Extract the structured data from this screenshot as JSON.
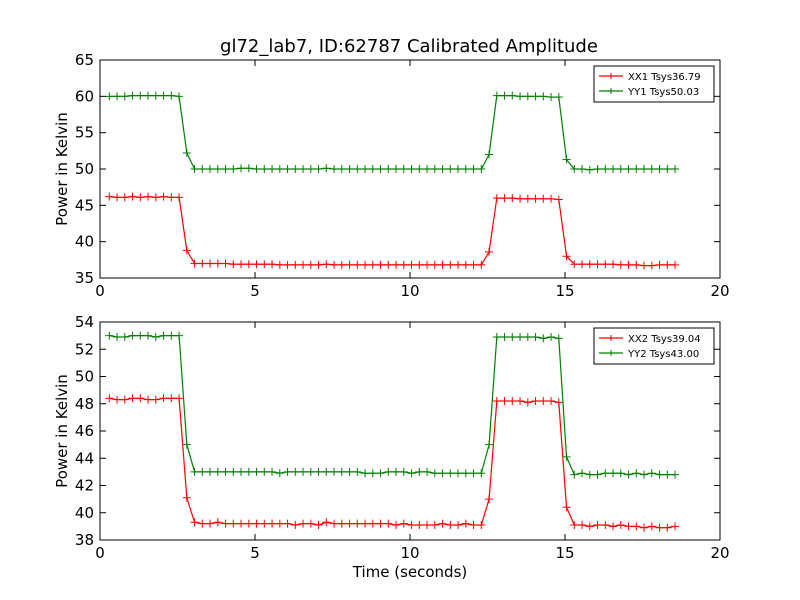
{
  "chart_data": [
    {
      "type": "line",
      "title": "gl72_lab7, ID:62787 Calibrated Amplitude",
      "xlabel": "",
      "ylabel": "Power in Kelvin",
      "xlim": [
        0,
        20
      ],
      "ylim": [
        35,
        65
      ],
      "xticks": [
        0,
        5,
        10,
        15,
        20
      ],
      "yticks": [
        35,
        40,
        45,
        50,
        55,
        60,
        65
      ],
      "legend_position": "top-right",
      "x": [
        0.3,
        0.55,
        0.8,
        1.05,
        1.3,
        1.55,
        1.8,
        2.05,
        2.3,
        2.55,
        2.8,
        3.05,
        3.3,
        3.55,
        3.8,
        4.05,
        4.3,
        4.55,
        4.8,
        5.05,
        5.3,
        5.55,
        5.8,
        6.05,
        6.3,
        6.55,
        6.8,
        7.05,
        7.3,
        7.55,
        7.8,
        8.05,
        8.3,
        8.55,
        8.8,
        9.05,
        9.3,
        9.55,
        9.8,
        10.05,
        10.3,
        10.55,
        10.8,
        11.05,
        11.3,
        11.55,
        11.8,
        12.05,
        12.3,
        12.55,
        12.8,
        13.05,
        13.3,
        13.55,
        13.8,
        14.05,
        14.3,
        14.55,
        14.8,
        15.05,
        15.3,
        15.55,
        15.8,
        16.05,
        16.3,
        16.55,
        16.8,
        17.05,
        17.3,
        17.55,
        17.8,
        18.05,
        18.3,
        18.55
      ],
      "series": [
        {
          "name": "XX1 Tsys36.79",
          "color": "#ff0000",
          "values": [
            46.2,
            46.1,
            46.1,
            46.2,
            46.1,
            46.2,
            46.1,
            46.2,
            46.1,
            46.1,
            38.8,
            37.0,
            37.0,
            37.0,
            37.0,
            37.0,
            36.9,
            36.9,
            36.9,
            36.9,
            36.9,
            36.9,
            36.8,
            36.8,
            36.8,
            36.8,
            36.8,
            36.8,
            36.9,
            36.8,
            36.8,
            36.8,
            36.8,
            36.8,
            36.8,
            36.8,
            36.8,
            36.8,
            36.8,
            36.8,
            36.8,
            36.8,
            36.8,
            36.8,
            36.8,
            36.8,
            36.8,
            36.8,
            36.8,
            38.6,
            46.0,
            46.0,
            46.0,
            45.9,
            45.9,
            45.9,
            45.9,
            45.9,
            45.8,
            38.0,
            36.9,
            36.9,
            36.9,
            36.9,
            36.9,
            36.9,
            36.8,
            36.8,
            36.8,
            36.7,
            36.7,
            36.8,
            36.8,
            36.8
          ]
        },
        {
          "name": "YY1 Tsys50.03",
          "color": "#008000",
          "values": [
            60.0,
            60.0,
            60.0,
            60.1,
            60.1,
            60.1,
            60.1,
            60.1,
            60.1,
            60.0,
            52.2,
            50.0,
            50.0,
            50.0,
            50.0,
            50.0,
            50.0,
            50.1,
            50.1,
            50.0,
            50.0,
            50.0,
            50.0,
            50.0,
            50.0,
            50.0,
            50.0,
            50.0,
            50.1,
            50.0,
            50.0,
            50.0,
            50.0,
            50.0,
            50.0,
            50.0,
            50.0,
            50.0,
            50.0,
            50.0,
            50.0,
            50.0,
            50.0,
            50.0,
            50.0,
            50.0,
            50.0,
            50.0,
            50.0,
            52.0,
            60.1,
            60.1,
            60.1,
            60.0,
            60.0,
            60.0,
            60.0,
            59.9,
            59.9,
            51.3,
            50.0,
            50.0,
            49.9,
            50.0,
            50.0,
            50.0,
            50.0,
            50.0,
            50.0,
            50.0,
            50.0,
            50.0,
            50.0,
            50.0
          ]
        }
      ]
    },
    {
      "type": "line",
      "title": "",
      "xlabel": "Time (seconds)",
      "ylabel": "Power in Kelvin",
      "xlim": [
        0,
        20
      ],
      "ylim": [
        38,
        54
      ],
      "xticks": [
        0,
        5,
        10,
        15,
        20
      ],
      "yticks": [
        38,
        40,
        42,
        44,
        46,
        48,
        50,
        52,
        54
      ],
      "legend_position": "top-right",
      "x": [
        0.3,
        0.55,
        0.8,
        1.05,
        1.3,
        1.55,
        1.8,
        2.05,
        2.3,
        2.55,
        2.8,
        3.05,
        3.3,
        3.55,
        3.8,
        4.05,
        4.3,
        4.55,
        4.8,
        5.05,
        5.3,
        5.55,
        5.8,
        6.05,
        6.3,
        6.55,
        6.8,
        7.05,
        7.3,
        7.55,
        7.8,
        8.05,
        8.3,
        8.55,
        8.8,
        9.05,
        9.3,
        9.55,
        9.8,
        10.05,
        10.3,
        10.55,
        10.8,
        11.05,
        11.3,
        11.55,
        11.8,
        12.05,
        12.3,
        12.55,
        12.8,
        13.05,
        13.3,
        13.55,
        13.8,
        14.05,
        14.3,
        14.55,
        14.8,
        15.05,
        15.3,
        15.55,
        15.8,
        16.05,
        16.3,
        16.55,
        16.8,
        17.05,
        17.3,
        17.55,
        17.8,
        18.05,
        18.3,
        18.55
      ],
      "series": [
        {
          "name": "XX2 Tsys39.04",
          "color": "#ff0000",
          "values": [
            48.4,
            48.3,
            48.3,
            48.4,
            48.4,
            48.3,
            48.3,
            48.4,
            48.4,
            48.4,
            41.1,
            39.3,
            39.2,
            39.2,
            39.3,
            39.2,
            39.2,
            39.2,
            39.2,
            39.2,
            39.2,
            39.2,
            39.2,
            39.2,
            39.1,
            39.2,
            39.2,
            39.1,
            39.3,
            39.2,
            39.2,
            39.2,
            39.2,
            39.2,
            39.2,
            39.2,
            39.2,
            39.1,
            39.2,
            39.1,
            39.1,
            39.1,
            39.1,
            39.2,
            39.1,
            39.1,
            39.2,
            39.1,
            39.1,
            41.0,
            48.2,
            48.2,
            48.2,
            48.2,
            48.1,
            48.2,
            48.2,
            48.2,
            48.1,
            40.4,
            39.1,
            39.1,
            39.0,
            39.1,
            39.1,
            39.0,
            39.1,
            39.0,
            39.0,
            38.9,
            39.0,
            38.9,
            38.9,
            39.0
          ]
        },
        {
          "name": "YY2 Tsys43.00",
          "color": "#008000",
          "values": [
            53.0,
            52.9,
            52.9,
            53.0,
            53.0,
            53.0,
            52.9,
            53.0,
            53.0,
            53.0,
            45.0,
            43.0,
            43.0,
            43.0,
            43.0,
            43.0,
            43.0,
            43.0,
            43.0,
            43.0,
            43.0,
            43.0,
            42.9,
            43.0,
            43.0,
            43.0,
            43.0,
            43.0,
            43.0,
            43.0,
            43.0,
            43.0,
            43.0,
            42.9,
            42.9,
            42.9,
            43.0,
            43.0,
            43.0,
            42.9,
            43.0,
            43.0,
            42.9,
            42.9,
            42.9,
            42.9,
            42.9,
            42.9,
            42.9,
            45.0,
            52.9,
            52.9,
            52.9,
            52.9,
            52.9,
            52.9,
            52.8,
            52.9,
            52.8,
            44.1,
            42.8,
            42.9,
            42.8,
            42.8,
            42.9,
            42.9,
            42.9,
            42.8,
            42.9,
            42.8,
            42.9,
            42.8,
            42.8,
            42.8
          ]
        }
      ]
    }
  ]
}
